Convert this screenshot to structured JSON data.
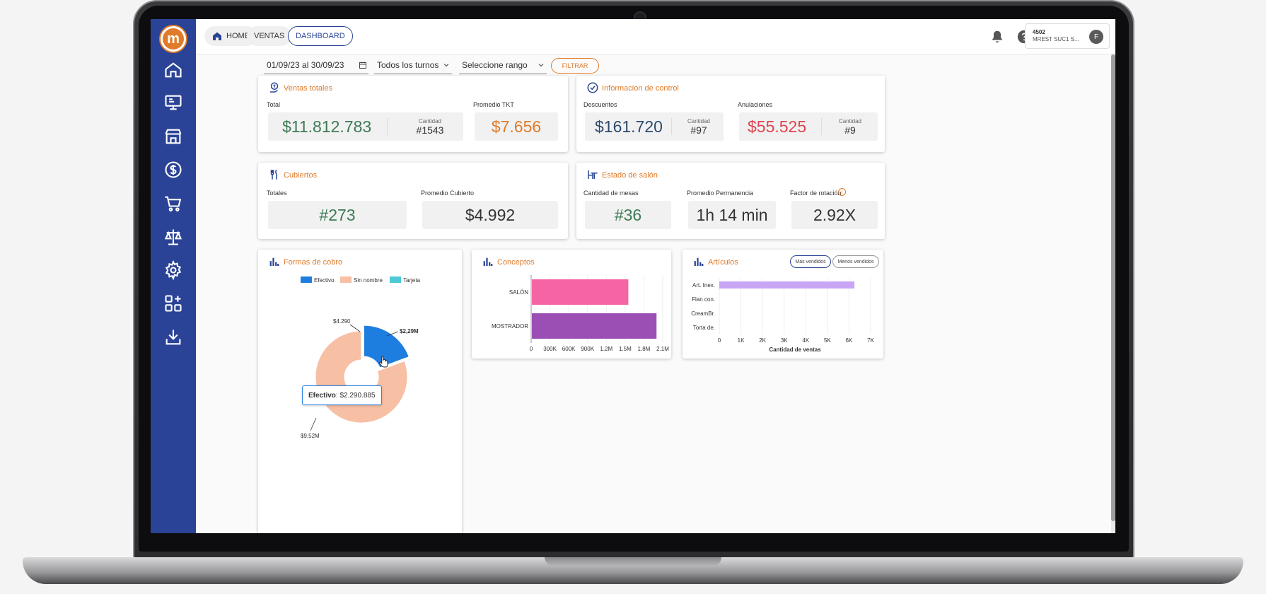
{
  "app": {
    "logo_letter": "m"
  },
  "breadcrumb": [
    {
      "label": "HOME"
    },
    {
      "label": "VENTAS"
    },
    {
      "label": "DASHBOARD"
    }
  ],
  "user": {
    "code": "4502",
    "name": "MREST SUC1 S...",
    "initial": "F"
  },
  "filters": {
    "date_range": "01/09/23 al 30/09/23",
    "turnos": "Todos los turnos",
    "rango_placeholder": "Seleccione rango",
    "filter_button": "FILTRAR"
  },
  "ventas_totales": {
    "title": "Ventas totales",
    "total_label": "Total",
    "total_value": "$11.812.783",
    "cantidad_label": "Cantidad",
    "cantidad_value": "#1543",
    "promedio_label": "Promedio TKT",
    "promedio_value": "$7.656"
  },
  "control": {
    "title": "Informacion de control",
    "descuentos_label": "Descuentos",
    "descuentos_value": "$161.720",
    "descuentos_cant_label": "Cantidad",
    "descuentos_cant_value": "#97",
    "anulaciones_label": "Anulaciones",
    "anulaciones_value": "$55.525",
    "anulaciones_cant_label": "Cantidad",
    "anulaciones_cant_value": "#9"
  },
  "cubiertos": {
    "title": "Cubiertos",
    "totales_label": "Totales",
    "totales_value": "#273",
    "promedio_label": "Promedio Cubierto",
    "promedio_value": "$4.992"
  },
  "salon": {
    "title": "Estado de salón",
    "mesas_label": "Cantidad de mesas",
    "mesas_value": "#36",
    "permanencia_label": "Promedio Permanencia",
    "permanencia_value": "1h 14 min",
    "rotacion_label": "Factor de rotación",
    "rotacion_value": "2.92X"
  },
  "colors": {
    "brand_blue": "#2b4396",
    "accent_orange": "#e07b2a",
    "green_value": "#3e7a55",
    "orange_value": "#e07b2a",
    "red_value": "#e0434f",
    "blue_value": "#2d4a6b"
  },
  "chart_data": [
    {
      "type": "pie",
      "title": "Formas de cobro",
      "legend": [
        "Efectivo",
        "Sin nombre",
        "Tarjeta"
      ],
      "colors": [
        "#1e7ee0",
        "#f7bfa3",
        "#4ec9d6"
      ],
      "values": [
        2290885,
        9520000,
        4290
      ],
      "slice_labels": [
        "$2,29M",
        "$9,52M",
        "$4.290"
      ],
      "tooltip": {
        "label": "Efectivo",
        "value": "$2.290.885"
      }
    },
    {
      "type": "bar",
      "title": "Conceptos",
      "orientation": "horizontal",
      "categories": [
        "SALÓN",
        "MOSTRADOR"
      ],
      "values": [
        1540000,
        1990000
      ],
      "colors": [
        "#f565a6",
        "#9b4fb5"
      ],
      "xticks": [
        "0",
        "300K",
        "600K",
        "900K",
        "1.2M",
        "1.5M",
        "1.8M",
        "2.1M"
      ],
      "xlim": [
        0,
        2100000
      ]
    },
    {
      "type": "bar",
      "title": "Artículos",
      "orientation": "horizontal",
      "categories": [
        "Art. Inex.",
        "Flan con.",
        "CreamBr.",
        "Torta de."
      ],
      "values": [
        6250,
        0,
        0,
        0
      ],
      "colors": [
        "#c9a6f5"
      ],
      "xticks": [
        "0",
        "1K",
        "2K",
        "3K",
        "4K",
        "5K",
        "6K",
        "7K"
      ],
      "xlim": [
        0,
        7000
      ],
      "xlabel": "Cantidad de ventas",
      "toggle": [
        "Más vendidos",
        "Menos vendidos"
      ]
    }
  ]
}
